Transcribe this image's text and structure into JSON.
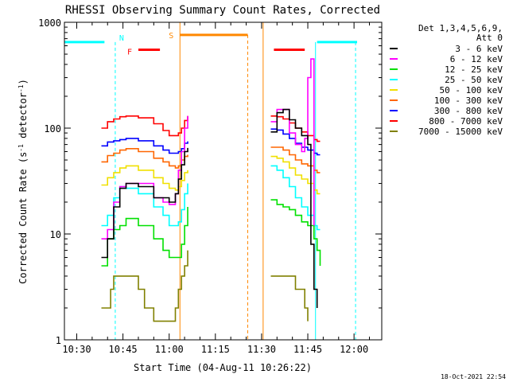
{
  "chart_data": {
    "type": "line",
    "title": "RHESSI Observing Summary Count Rates, Corrected",
    "xlabel": "Start Time (04-Aug-11 10:26:22)",
    "ylabel": "Corrected Count Rate (s⁻¹ detector⁻¹)",
    "ylabel_main": "Corrected Count Rate (s",
    "ylabel_exp1": "-1",
    "ylabel_mid": " detector",
    "ylabel_exp2": "-1",
    "ylabel_end": ")",
    "yscale": "log",
    "ylim": [
      1,
      1000
    ],
    "xlim_minutes": [
      26,
      129
    ],
    "x_ticks": [
      {
        "m": 30,
        "label": "10:30"
      },
      {
        "m": 45,
        "label": "10:45"
      },
      {
        "m": 60,
        "label": "11:00"
      },
      {
        "m": 75,
        "label": "11:15"
      },
      {
        "m": 90,
        "label": "11:30"
      },
      {
        "m": 105,
        "label": "11:45"
      },
      {
        "m": 120,
        "label": "12:00"
      }
    ],
    "y_ticks": [
      {
        "v": 1,
        "label": "1"
      },
      {
        "v": 10,
        "label": "10"
      },
      {
        "v": 100,
        "label": "100"
      },
      {
        "v": 1000,
        "label": "1000"
      }
    ],
    "legend_title_line1": "Det 1,3,4,5,6,9,",
    "legend_title_line2": "Att 0",
    "legend_placement": "right",
    "series": [
      {
        "name": "3 - 6 keV",
        "color": "#000000",
        "x": [
          38,
          40,
          42,
          44,
          46,
          50,
          55,
          58,
          60,
          62,
          63,
          64,
          65,
          66,
          93,
          95,
          97,
          99,
          101,
          103,
          105,
          106,
          107,
          108
        ],
        "y": [
          6,
          9,
          18,
          27,
          30,
          28,
          22,
          22,
          20,
          24,
          33,
          45,
          60,
          65,
          92,
          140,
          150,
          120,
          100,
          85,
          70,
          8,
          3,
          2
        ]
      },
      {
        "name": "6 - 12 keV",
        "color": "#ff00ff",
        "x": [
          38,
          40,
          42,
          44,
          46,
          50,
          55,
          58,
          60,
          62,
          63,
          64,
          65,
          66,
          93,
          95,
          97,
          99,
          101,
          103,
          104,
          105,
          106,
          107
        ],
        "y": [
          9,
          11,
          20,
          28,
          30,
          30,
          22,
          20,
          19,
          24,
          40,
          60,
          100,
          130,
          115,
          150,
          150,
          90,
          70,
          60,
          80,
          300,
          450,
          12
        ]
      },
      {
        "name": "12 - 25 keV",
        "color": "#00e000",
        "x": [
          38,
          40,
          42,
          44,
          46,
          50,
          55,
          58,
          60,
          62,
          63,
          64,
          65,
          66,
          93,
          95,
          97,
          99,
          101,
          103,
          105,
          107,
          108,
          109
        ],
        "y": [
          5,
          9,
          11,
          12,
          14,
          12,
          9,
          7,
          6,
          6,
          6,
          8,
          12,
          18,
          21,
          19,
          18,
          17,
          15,
          13,
          12,
          9,
          7,
          5
        ]
      },
      {
        "name": "25 - 50 keV",
        "color": "#00ffff",
        "x": [
          38,
          40,
          42,
          44,
          46,
          50,
          55,
          58,
          60,
          62,
          63,
          64,
          65,
          66,
          93,
          95,
          97,
          99,
          101,
          103,
          105,
          107,
          108,
          109
        ],
        "y": [
          12,
          15,
          22,
          28,
          27,
          24,
          18,
          15,
          12,
          12,
          13,
          17,
          24,
          30,
          44,
          40,
          34,
          28,
          22,
          18,
          15,
          12,
          11,
          11
        ]
      },
      {
        "name": "50 - 100 keV",
        "color": "#f0e000",
        "x": [
          38,
          40,
          42,
          44,
          46,
          50,
          55,
          58,
          60,
          62,
          63,
          64,
          65,
          66,
          93,
          95,
          97,
          99,
          101,
          103,
          105,
          107,
          108,
          109
        ],
        "y": [
          29,
          34,
          38,
          42,
          44,
          40,
          34,
          30,
          27,
          26,
          28,
          32,
          38,
          40,
          54,
          52,
          48,
          42,
          36,
          33,
          30,
          26,
          24,
          24
        ]
      },
      {
        "name": "100 - 300 keV",
        "color": "#ff6600",
        "x": [
          38,
          40,
          42,
          44,
          46,
          50,
          55,
          58,
          60,
          62,
          63,
          64,
          65,
          66,
          93,
          95,
          97,
          99,
          101,
          103,
          105,
          107,
          108,
          109
        ],
        "y": [
          48,
          55,
          58,
          62,
          64,
          60,
          52,
          48,
          44,
          42,
          44,
          50,
          54,
          56,
          66,
          66,
          62,
          56,
          50,
          46,
          44,
          40,
          38,
          38
        ]
      },
      {
        "name": "300 - 800 keV",
        "color": "#0000ff",
        "x": [
          38,
          40,
          42,
          44,
          46,
          50,
          55,
          58,
          60,
          62,
          63,
          64,
          65,
          66,
          93,
          95,
          97,
          99,
          101,
          103,
          105,
          107,
          108,
          109
        ],
        "y": [
          68,
          74,
          76,
          78,
          80,
          76,
          68,
          62,
          58,
          58,
          60,
          64,
          72,
          75,
          98,
          96,
          88,
          80,
          72,
          66,
          62,
          58,
          56,
          56
        ]
      },
      {
        "name": "800 - 7000 keV",
        "color": "#ff0000",
        "x": [
          38,
          40,
          42,
          44,
          46,
          50,
          55,
          58,
          60,
          62,
          63,
          64,
          65,
          66,
          93,
          95,
          97,
          99,
          101,
          103,
          105,
          107,
          108,
          109
        ],
        "y": [
          100,
          115,
          122,
          128,
          130,
          125,
          110,
          95,
          85,
          85,
          90,
          100,
          118,
          130,
          130,
          128,
          122,
          112,
          100,
          92,
          85,
          78,
          75,
          75
        ]
      },
      {
        "name": "7000 - 15000 keV",
        "color": "#808000",
        "x": [
          38,
          40,
          41,
          42,
          44,
          46,
          48,
          50,
          52,
          54,
          55,
          60,
          62,
          63,
          64,
          65,
          66,
          93,
          95,
          97,
          99,
          101,
          103,
          104,
          105
        ],
        "y": [
          2,
          2,
          3,
          4,
          4,
          4,
          4,
          3,
          2,
          2,
          1.5,
          1.5,
          2,
          3,
          4,
          5,
          7,
          4,
          4,
          4,
          4,
          3,
          3,
          2,
          1.5
        ]
      }
    ],
    "bands": {
      "N": {
        "label": "N",
        "color": "#00ffff",
        "y": 650,
        "segments": [
          [
            26,
            39
          ],
          [
            108,
            121
          ]
        ],
        "dashed_x": [
          42.5,
          120.5
        ],
        "solid_x": [
          26,
          107.5
        ]
      },
      "F": {
        "label": "F",
        "color": "#ff0000",
        "y": 550,
        "segments": [
          [
            50,
            57
          ],
          [
            94,
            104
          ]
        ]
      },
      "S": {
        "label": "S",
        "color": "#ff8800",
        "y": 760,
        "segments": [
          [
            63.5,
            85.5
          ]
        ],
        "solid_x": [
          63.5,
          90.5
        ],
        "dashed_x": [
          85.5
        ]
      }
    }
  },
  "timestamp": "18-Oct-2021 22:54"
}
